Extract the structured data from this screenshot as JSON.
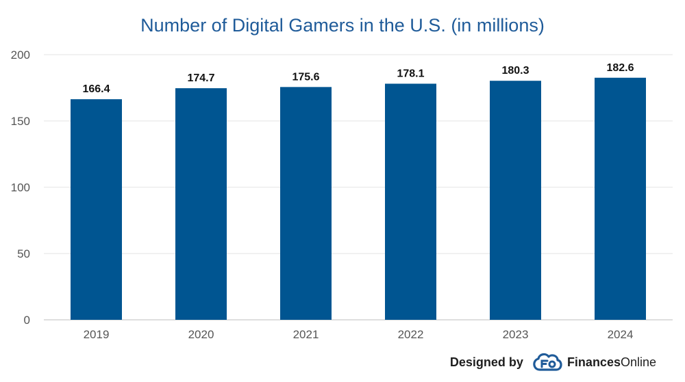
{
  "chart_data": {
    "type": "bar",
    "title": "Number of Digital Gamers in the U.S. (in millions)",
    "categories": [
      "2019",
      "2020",
      "2021",
      "2022",
      "2023",
      "2024"
    ],
    "values": [
      166.4,
      174.7,
      175.6,
      178.1,
      180.3,
      182.6
    ],
    "data_labels": [
      "166.4",
      "174.7",
      "175.6",
      "178.1",
      "180.3",
      "182.6"
    ],
    "yticks": [
      "0",
      "50",
      "100",
      "150",
      "200"
    ],
    "ylim": [
      0,
      200
    ],
    "xlabel": "",
    "ylabel": "",
    "grid": true,
    "bar_color": "#005591"
  },
  "credit": {
    "designed_by": "Designed by",
    "brand_bold": "Finances",
    "brand_rest": "Online",
    "logo_icon": "financesonline-cloud-logo-icon"
  },
  "colors": {
    "title": "#1f5b99",
    "logo": "#1f5b99"
  }
}
